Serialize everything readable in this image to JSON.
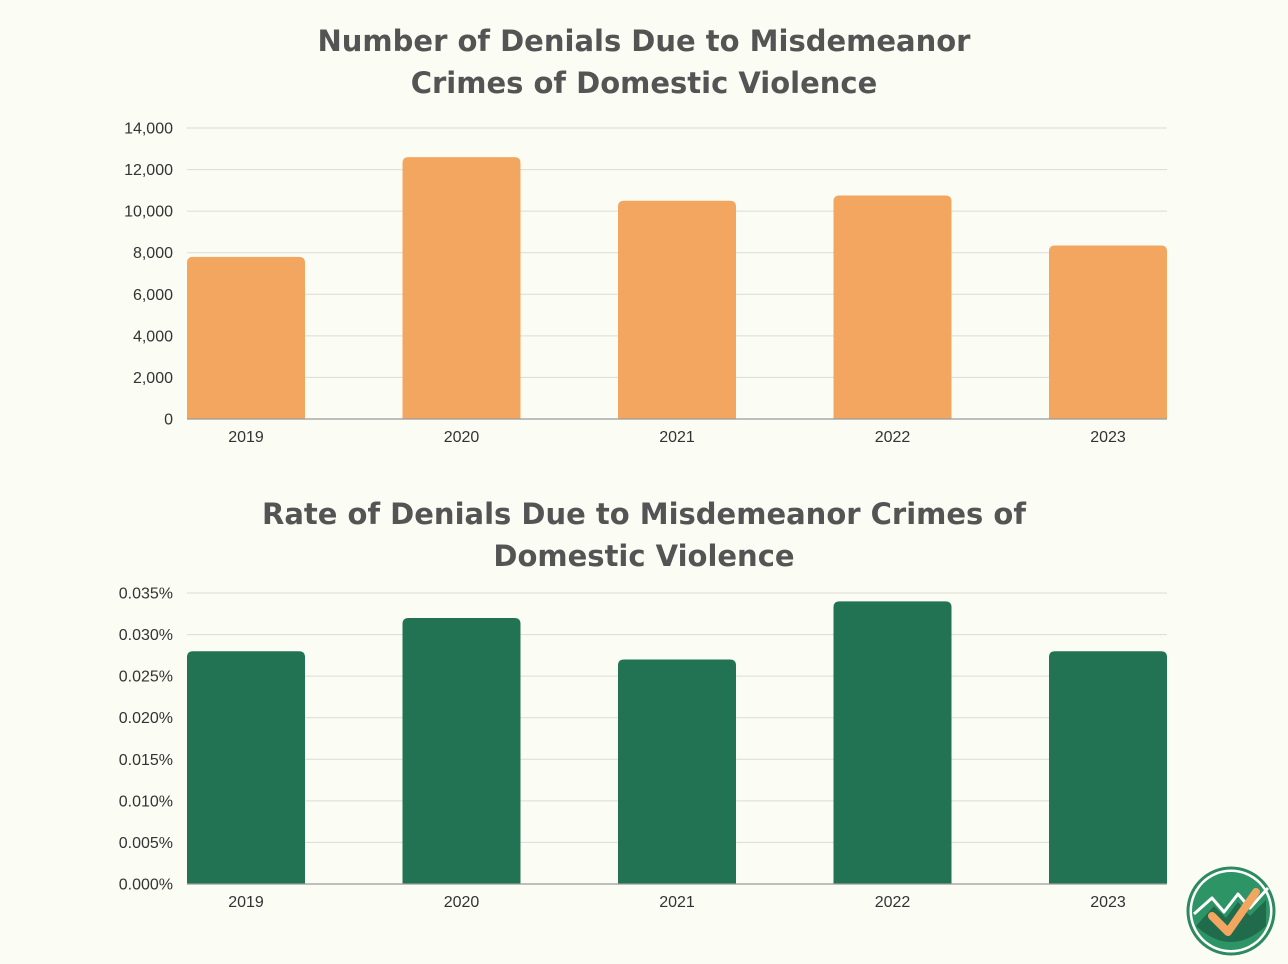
{
  "colors": {
    "background": "#fbfcf4",
    "title": "#545454",
    "bar_chart_1": "#f3a65f",
    "bar_chart_2": "#217354",
    "logo_green": "#2d8a5f",
    "logo_orange": "#f3a65f"
  },
  "logo": {
    "icon": "checkmark-mountain-logo-icon"
  },
  "chart_data": [
    {
      "type": "bar",
      "title_lines": [
        "Number of Denials Due to Misdemeanor",
        "Crimes of Domestic Violence"
      ],
      "categories": [
        "2019",
        "2020",
        "2021",
        "2022",
        "2023"
      ],
      "values": [
        7800,
        12600,
        10500,
        10750,
        8350
      ],
      "ylim": [
        0,
        14000
      ],
      "yticks": [
        0,
        2000,
        4000,
        6000,
        8000,
        10000,
        12000,
        14000
      ],
      "ytick_labels": [
        "0",
        "2,000",
        "4,000",
        "6,000",
        "8,000",
        "10,000",
        "12,000",
        "14,000"
      ],
      "grid": true,
      "legend": "none",
      "xlabel": "",
      "ylabel": ""
    },
    {
      "type": "bar",
      "title_lines": [
        "Rate of Denials Due to Misdemeanor Crimes of",
        "Domestic Violence"
      ],
      "categories": [
        "2019",
        "2020",
        "2021",
        "2022",
        "2023"
      ],
      "values": [
        0.028,
        0.032,
        0.027,
        0.034,
        0.028
      ],
      "ylim": [
        0,
        0.035
      ],
      "yticks": [
        0,
        0.005,
        0.01,
        0.015,
        0.02,
        0.025,
        0.03,
        0.035
      ],
      "ytick_labels": [
        "0.000%",
        "0.005%",
        "0.010%",
        "0.015%",
        "0.020%",
        "0.025%",
        "0.030%",
        "0.035%"
      ],
      "grid": true,
      "legend": "none",
      "xlabel": "",
      "ylabel": ""
    }
  ]
}
